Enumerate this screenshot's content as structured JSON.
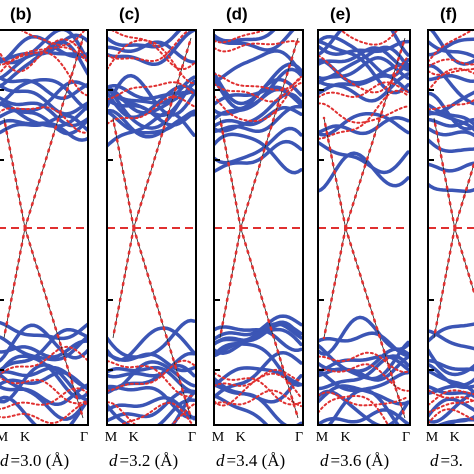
{
  "panels": [
    {
      "label": "(b)",
      "ticks": [
        "M",
        "K",
        "Γ"
      ],
      "caption": {
        "symbol": "d",
        "text": "=3.0 (Å)"
      }
    },
    {
      "label": "(c)",
      "ticks": [
        "M",
        "K",
        "Γ"
      ],
      "caption": {
        "symbol": "d",
        "text": "=3.2 (Å)"
      }
    },
    {
      "label": "(d)",
      "ticks": [
        "M",
        "K",
        "Γ"
      ],
      "caption": {
        "symbol": "d",
        "text": "=3.4 (Å)"
      }
    },
    {
      "label": "(e)",
      "ticks": [
        "M",
        "K",
        "Γ"
      ],
      "caption": {
        "symbol": "d",
        "text": "=3.6 (Å)"
      }
    },
    {
      "label": "(f)",
      "ticks": [
        "M",
        "K"
      ],
      "caption": {
        "symbol": "d",
        "text": "=3."
      }
    }
  ]
}
